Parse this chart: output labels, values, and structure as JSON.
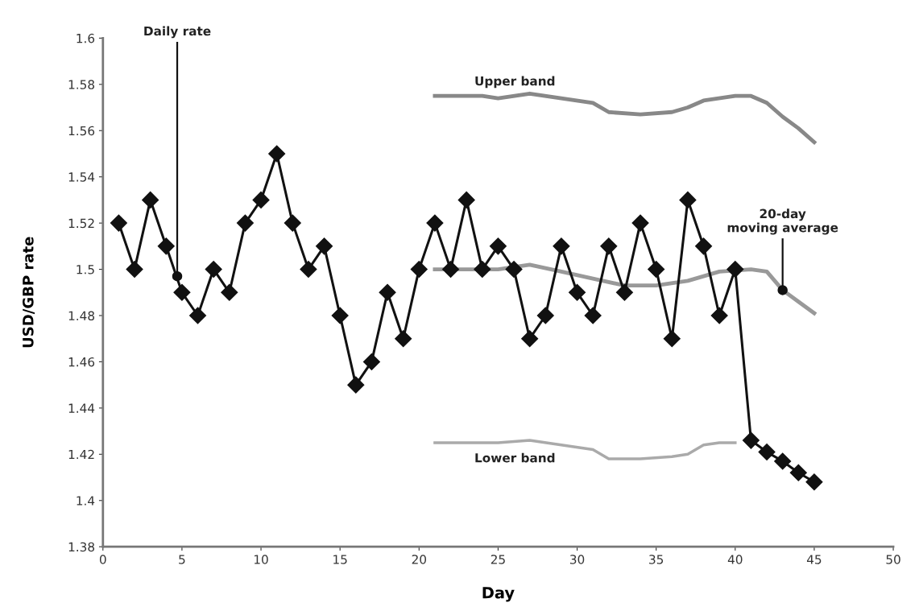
{
  "chart_data": {
    "type": "line",
    "xlabel": "Day",
    "ylabel": "USD/GBP rate",
    "xlim": [
      0,
      50
    ],
    "xticks": [
      0,
      5,
      10,
      15,
      20,
      25,
      30,
      35,
      40,
      45,
      50
    ],
    "ylim": [
      1.38,
      1.6
    ],
    "yticks": [
      1.38,
      1.4,
      1.42,
      1.44,
      1.46,
      1.48,
      1.5,
      1.52,
      1.54,
      1.56,
      1.58,
      1.6
    ],
    "grid": false,
    "legend": false,
    "series": [
      {
        "name": "Daily rate",
        "color": "#111111",
        "marker": "diamond",
        "x": [
          1,
          2,
          3,
          4,
          5,
          6,
          7,
          8,
          9,
          10,
          11,
          12,
          13,
          14,
          15,
          16,
          17,
          18,
          19,
          20,
          21,
          22,
          23,
          24,
          25,
          26,
          27,
          28,
          29,
          30,
          31,
          32,
          33,
          34,
          35,
          36,
          37,
          38,
          39,
          40,
          41,
          42,
          43,
          44,
          45
        ],
        "values": [
          1.52,
          1.5,
          1.53,
          1.51,
          1.49,
          1.48,
          1.5,
          1.49,
          1.52,
          1.53,
          1.55,
          1.52,
          1.5,
          1.51,
          1.48,
          1.45,
          1.46,
          1.49,
          1.47,
          1.5,
          1.52,
          1.5,
          1.53,
          1.5,
          1.51,
          1.5,
          1.47,
          1.48,
          1.51,
          1.49,
          1.48,
          1.51,
          1.49,
          1.52,
          1.5,
          1.47,
          1.53,
          1.51,
          1.48,
          1.5,
          1.426,
          1.421,
          1.417,
          1.412,
          1.408
        ]
      },
      {
        "name": "20-day\nmoving average",
        "color": "#999999",
        "marker": "none",
        "x": [
          21,
          23,
          25,
          27,
          29,
          31,
          33,
          35,
          37,
          39,
          41,
          42,
          43,
          44,
          45
        ],
        "values": [
          1.5,
          1.5,
          1.5,
          1.502,
          1.499,
          1.496,
          1.493,
          1.493,
          1.495,
          1.499,
          1.5,
          1.499,
          1.491,
          1.486,
          1.481
        ]
      },
      {
        "name": "Upper band",
        "color": "#888888",
        "marker": "none",
        "x": [
          21,
          24,
          25,
          27,
          29,
          31,
          32,
          34,
          36,
          37,
          38,
          40,
          41,
          42,
          43,
          44,
          45
        ],
        "values": [
          1.575,
          1.575,
          1.574,
          1.576,
          1.574,
          1.572,
          1.568,
          1.567,
          1.568,
          1.57,
          1.573,
          1.575,
          1.575,
          1.572,
          1.566,
          1.561,
          1.555
        ]
      },
      {
        "name": "Lower band",
        "color": "#aaaaaa",
        "marker": "none",
        "x": [
          21,
          25,
          27,
          29,
          31,
          32,
          34,
          36,
          37,
          38,
          39,
          40
        ],
        "values": [
          1.425,
          1.425,
          1.426,
          1.424,
          1.422,
          1.418,
          1.418,
          1.419,
          1.42,
          1.424,
          1.425,
          1.425
        ]
      }
    ]
  }
}
